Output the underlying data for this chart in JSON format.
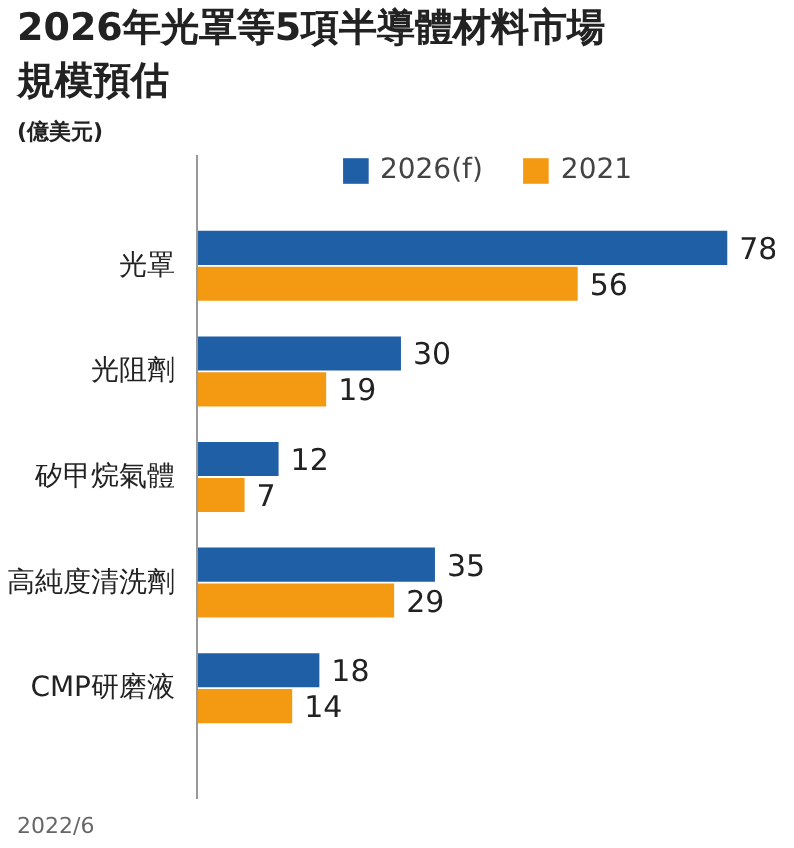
{
  "chart_data": {
    "type": "bar",
    "orientation": "horizontal",
    "title": "2026年光罩等5項半導體材料市場規模預估",
    "subtitle": "(億美元)",
    "categories": [
      "光罩",
      "光阻劑",
      "矽甲烷氣體",
      "高純度清洗劑",
      "CMP研磨液"
    ],
    "series": [
      {
        "name": "2026(f)",
        "color": "#1f5fa6",
        "values": [
          78,
          30,
          12,
          35,
          18
        ]
      },
      {
        "name": "2021",
        "color": "#f39a12",
        "values": [
          56,
          19,
          7,
          29,
          14
        ]
      }
    ],
    "data_labels": true,
    "legend": "top",
    "tick_labels": "y",
    "grid": false,
    "annotations": [
      "2022/6"
    ]
  }
}
